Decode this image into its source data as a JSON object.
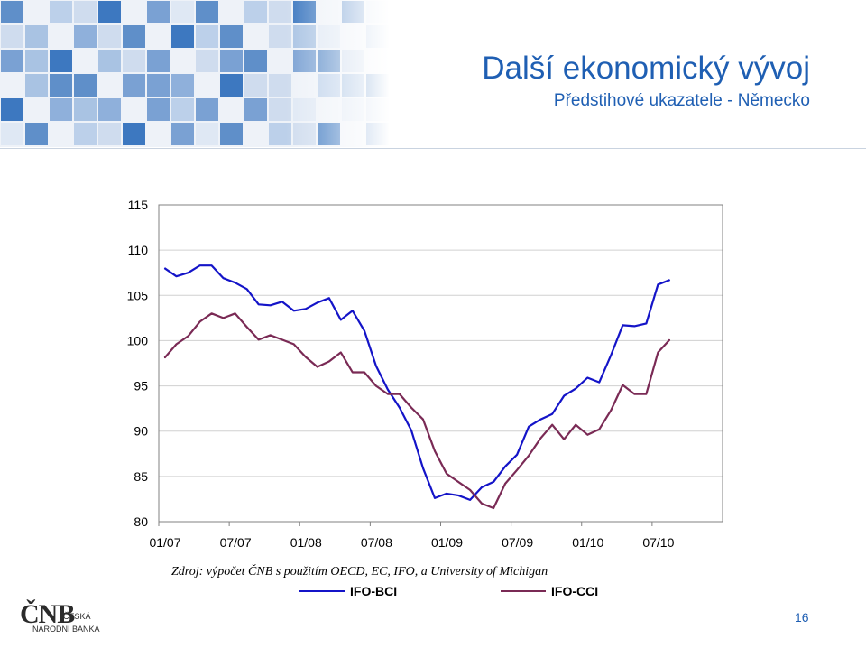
{
  "slide": {
    "title": "Další ekonomický vývoj",
    "subtitle": "Předstihové ukazatele - Německo",
    "source": "Zdroj: výpočet ČNB s použitím OECD, EC, IFO, a University of Michigan",
    "page_number": "16"
  },
  "logo": {
    "mark": "ČNB",
    "line1": "ČESKÁ",
    "line2": "NÁRODNÍ BANKA"
  },
  "colors": {
    "title": "#1f5fb3",
    "ifo_bci": "#1414c8",
    "ifo_cci": "#7a2a55",
    "gridline": "#d0d0d0"
  },
  "chart_data": {
    "type": "line",
    "title": "",
    "xlabel": "",
    "ylabel": "",
    "ylim": [
      80,
      115
    ],
    "yticks": [
      115,
      110,
      105,
      100,
      95,
      90,
      85,
      80
    ],
    "xticks": [
      "01/07",
      "07/07",
      "01/08",
      "07/08",
      "01/09",
      "07/09",
      "01/10",
      "07/10"
    ],
    "x_start": "2007-01",
    "grid": true,
    "legend_position": "bottom",
    "series": [
      {
        "name": "IFO-BCI",
        "color": "#1414c8",
        "values": [
          108.0,
          107.1,
          107.5,
          108.3,
          108.3,
          106.9,
          106.4,
          105.7,
          104.0,
          103.9,
          104.3,
          103.3,
          103.5,
          104.2,
          104.7,
          102.3,
          103.3,
          101.1,
          97.2,
          94.6,
          92.6,
          90.1,
          85.9,
          82.6,
          83.1,
          82.9,
          82.4,
          83.8,
          84.4,
          86.1,
          87.4,
          90.5,
          91.3,
          91.9,
          93.9,
          94.7,
          95.9,
          95.4,
          98.4,
          101.7,
          101.6,
          101.9,
          106.2,
          106.7
        ]
      },
      {
        "name": "IFO-CCI",
        "color": "#7a2a55",
        "values": [
          98.1,
          99.6,
          100.5,
          102.1,
          103.0,
          102.5,
          103.0,
          101.5,
          100.1,
          100.6,
          100.1,
          99.6,
          98.2,
          97.1,
          97.7,
          98.7,
          96.5,
          96.5,
          95.0,
          94.1,
          94.1,
          92.6,
          91.3,
          87.8,
          85.3,
          84.4,
          83.5,
          82.0,
          81.5,
          84.2,
          85.7,
          87.3,
          89.2,
          90.7,
          89.1,
          90.7,
          89.6,
          90.2,
          92.3,
          95.1,
          94.1,
          94.1,
          98.7,
          100.1
        ]
      }
    ]
  }
}
